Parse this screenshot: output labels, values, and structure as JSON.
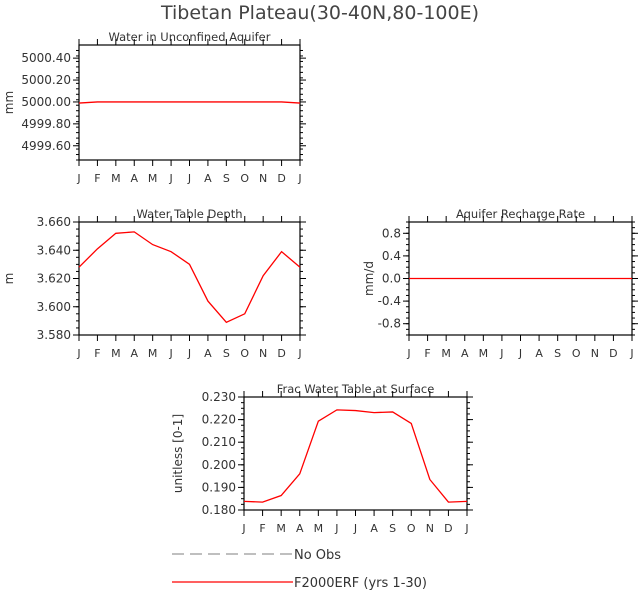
{
  "title": "Tibetan Plateau(30-40N,80-100E)",
  "chart_data": [
    {
      "type": "line",
      "title": "Water in Unconfined Aquifer",
      "ylabel": "mm",
      "categories": [
        "J",
        "F",
        "M",
        "A",
        "M",
        "J",
        "J",
        "A",
        "S",
        "O",
        "N",
        "D",
        "J"
      ],
      "ylim": [
        4999.47,
        5000.52
      ],
      "yticks": [
        "5000.40",
        "5000.20",
        "5000.00",
        "4999.80",
        "4999.60"
      ],
      "ytick_values": [
        5000.4,
        5000.2,
        5000.0,
        4999.8,
        4999.6
      ],
      "values": [
        4999.99,
        5000.0,
        5000.0,
        5000.0,
        5000.0,
        5000.0,
        5000.0,
        5000.0,
        5000.0,
        5000.0,
        5000.0,
        5000.0,
        4999.99
      ]
    },
    {
      "type": "line",
      "title": "Water Table Depth",
      "ylabel": "m",
      "categories": [
        "J",
        "F",
        "M",
        "A",
        "M",
        "J",
        "J",
        "A",
        "S",
        "O",
        "N",
        "D",
        "J"
      ],
      "ylim": [
        3.58,
        3.66
      ],
      "yticks": [
        "3.660",
        "3.640",
        "3.620",
        "3.600",
        "3.580"
      ],
      "ytick_values": [
        3.66,
        3.64,
        3.62,
        3.6,
        3.58
      ],
      "values": [
        3.628,
        3.641,
        3.652,
        3.653,
        3.644,
        3.639,
        3.63,
        3.604,
        3.589,
        3.595,
        3.622,
        3.639,
        3.628
      ]
    },
    {
      "type": "line",
      "title": "Aquifer Recharge Rate",
      "ylabel": "mm/d",
      "categories": [
        "J",
        "F",
        "M",
        "A",
        "M",
        "J",
        "J",
        "A",
        "S",
        "O",
        "N",
        "D",
        "J"
      ],
      "ylim": [
        -1,
        1
      ],
      "yticks": [
        "0.8",
        "0.4",
        "0.0",
        "-0.4",
        "-0.8"
      ],
      "ytick_values": [
        0.8,
        0.4,
        0,
        -0.4,
        -0.8
      ],
      "values": [
        0,
        0,
        0,
        0,
        0,
        0,
        0,
        0,
        0,
        0,
        0,
        0,
        0
      ]
    },
    {
      "type": "line",
      "title": "Frac Water Table at Surface",
      "ylabel": "unitless [0-1]",
      "categories": [
        "J",
        "F",
        "M",
        "A",
        "M",
        "J",
        "J",
        "A",
        "S",
        "O",
        "N",
        "D",
        "J"
      ],
      "ylim": [
        0.18,
        0.23
      ],
      "yticks": [
        "0.230",
        "0.220",
        "0.210",
        "0.200",
        "0.190",
        "0.180"
      ],
      "ytick_values": [
        0.23,
        0.22,
        0.21,
        0.2,
        0.19,
        0.18
      ],
      "values": [
        0.1838,
        0.1835,
        0.1864,
        0.196,
        0.2193,
        0.2243,
        0.224,
        0.2231,
        0.2234,
        0.2183,
        0.1935,
        0.1835,
        0.1838
      ]
    }
  ],
  "legend": [
    {
      "label": "No Obs",
      "color": "#999999",
      "dashed": true
    },
    {
      "label": "F2000ERF (yrs 1-30)",
      "color": "#ff0000",
      "dashed": false
    }
  ],
  "line_color": "#ff0000"
}
